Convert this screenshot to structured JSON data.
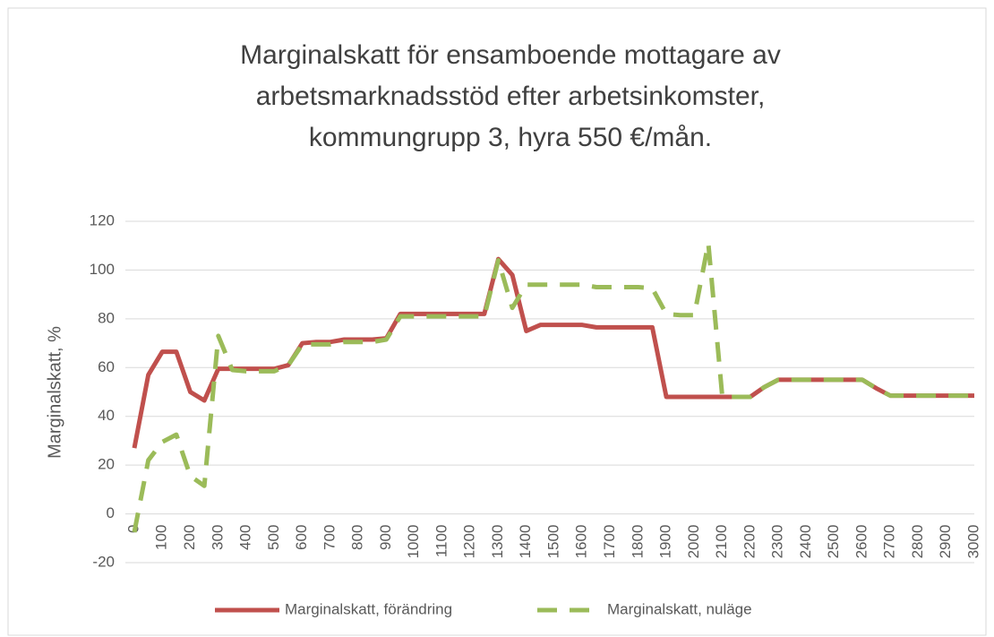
{
  "chart_data": {
    "type": "line",
    "title": [
      "Marginalskatt för ensamboende mottagare av",
      "arbetsmarknadsstöd efter arbetsinkomster,",
      "kommungrupp 3, hyra 550 €/mån."
    ],
    "y_label": "Marginalskatt, %",
    "x": [
      0,
      50,
      100,
      150,
      200,
      250,
      300,
      350,
      400,
      450,
      500,
      550,
      600,
      650,
      700,
      750,
      800,
      850,
      900,
      950,
      1000,
      1050,
      1100,
      1150,
      1200,
      1250,
      1300,
      1350,
      1400,
      1450,
      1500,
      1550,
      1600,
      1650,
      1700,
      1750,
      1800,
      1850,
      1900,
      1950,
      2000,
      2050,
      2100,
      2150,
      2200,
      2250,
      2300,
      2350,
      2400,
      2450,
      2500,
      2550,
      2600,
      2650,
      2700,
      2750,
      2800,
      2850,
      2900,
      2950,
      3000
    ],
    "xlim": [
      0,
      3000
    ],
    "xticks": [
      0,
      100,
      200,
      300,
      400,
      500,
      600,
      700,
      800,
      900,
      1000,
      1100,
      1200,
      1300,
      1400,
      1500,
      1600,
      1700,
      1800,
      1900,
      2000,
      2100,
      2200,
      2300,
      2400,
      2500,
      2600,
      2700,
      2800,
      2900,
      3000
    ],
    "ylim": [
      -20,
      120
    ],
    "yticks": [
      -20,
      0,
      20,
      40,
      60,
      80,
      100,
      120
    ],
    "grid": true,
    "legend": "bottom",
    "series": [
      {
        "name": "Marginalskatt, förändring",
        "color": "#c0504d",
        "dash": "solid",
        "values": [
          27,
          57,
          66.5,
          66.5,
          50,
          46.5,
          59.5,
          59.5,
          59.5,
          59.5,
          59.5,
          61,
          70,
          70.5,
          70.5,
          71.5,
          71.5,
          71.5,
          72,
          82,
          82,
          82,
          82,
          82,
          82,
          82,
          104.5,
          98,
          75,
          77.5,
          77.5,
          77.5,
          77.5,
          76.5,
          76.5,
          76.5,
          76.5,
          76.5,
          48,
          48,
          48,
          48,
          48,
          48,
          48,
          52,
          55,
          55,
          55,
          55,
          55,
          55,
          55,
          51.5,
          48.5,
          48.5,
          48.5,
          48.5,
          48.5,
          48.5,
          48.5
        ]
      },
      {
        "name": "Marginalskatt, nuläge",
        "color": "#9bbb59",
        "dash": "dashed",
        "values": [
          -7.5,
          22,
          29.5,
          32.5,
          15.5,
          11.5,
          73,
          59,
          58.5,
          58.5,
          58.5,
          61,
          69.5,
          69.5,
          69.5,
          70.5,
          70.5,
          70.5,
          71.5,
          81,
          81,
          81,
          81,
          81,
          81,
          81,
          104,
          84.5,
          94,
          94,
          94,
          94,
          94,
          93,
          93,
          93,
          93,
          92.5,
          82,
          81.5,
          81.5,
          111,
          48,
          48,
          48,
          52,
          55,
          55,
          55,
          55,
          55,
          55,
          55,
          51.5,
          48.5,
          48.5,
          48.5,
          48.5,
          48.5,
          48.5,
          48.5
        ]
      }
    ]
  }
}
